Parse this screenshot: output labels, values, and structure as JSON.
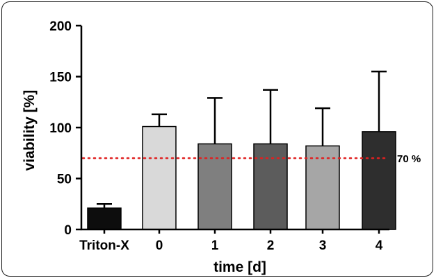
{
  "chart_data": {
    "type": "bar",
    "categories": [
      "Triton-X",
      "0",
      "1",
      "2",
      "3",
      "4"
    ],
    "values": [
      21,
      101,
      84,
      84,
      82,
      96
    ],
    "error_upper": [
      25,
      113,
      129,
      137,
      119,
      155
    ],
    "colors": [
      "#0d0d0d",
      "#d9d9d9",
      "#7f7f7f",
      "#5c5c5c",
      "#a6a6a6",
      "#2e2e2e"
    ],
    "xlabel": "time [d]",
    "ylabel": "viability [%]",
    "ylim": [
      0,
      200
    ],
    "yticks": [
      0,
      50,
      100,
      150,
      200
    ],
    "reference_line": {
      "value": 70,
      "label": "70 %",
      "color": "#e02020",
      "style": "dotted"
    },
    "grid": false
  }
}
